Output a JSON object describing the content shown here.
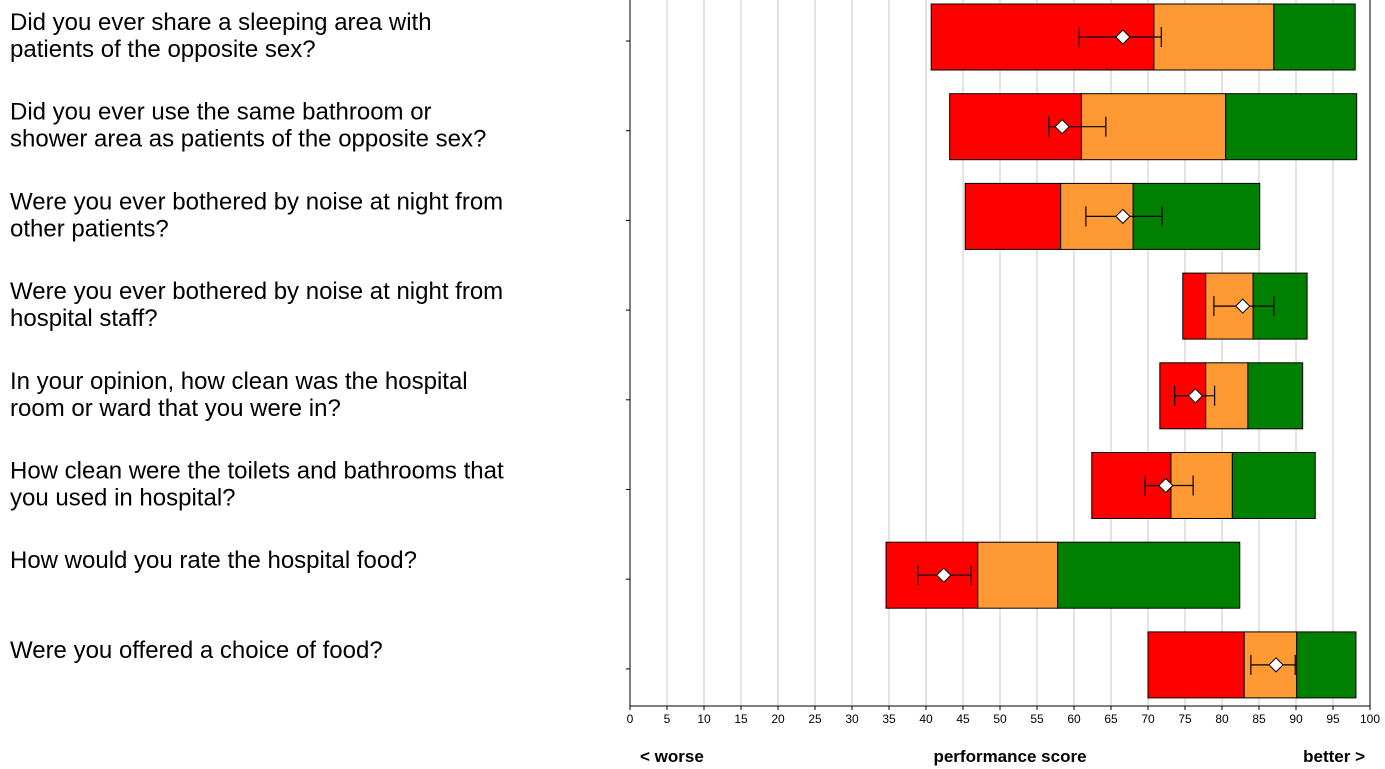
{
  "chart_data": {
    "type": "range_bar",
    "categories": [
      [
        "Did you ever share a sleeping area with",
        "patients of the opposite sex?"
      ],
      [
        "Did you ever use the same bathroom or",
        "shower area as patients of the opposite sex?"
      ],
      [
        "Were you ever bothered by noise at night from",
        "other patients?"
      ],
      [
        "Were you ever bothered by noise at night from",
        "hospital staff?"
      ],
      [
        "In your opinion, how clean was the hospital",
        "room or ward that you were in?"
      ],
      [
        "How clean were the toilets and bathrooms that",
        "you used in hospital?"
      ],
      [
        "How would you rate the hospital food?"
      ],
      [
        "Were you offered a choice of food?"
      ]
    ],
    "ranges": [
      [
        40.7,
        70.8,
        87.0,
        98.0
      ],
      [
        43.2,
        61.0,
        80.5,
        98.2
      ],
      [
        45.3,
        58.2,
        68.0,
        85.1
      ],
      [
        74.7,
        77.8,
        84.2,
        91.5
      ],
      [
        71.6,
        77.8,
        83.5,
        90.9
      ],
      [
        62.4,
        73.1,
        81.4,
        92.6
      ],
      [
        34.6,
        47.0,
        57.8,
        82.4
      ],
      [
        70.0,
        83.0,
        90.1,
        98.1
      ]
    ],
    "colors": [
      "#ff0000",
      "#ff9933",
      "#008000"
    ],
    "scores": [
      66.6,
      58.4,
      66.6,
      82.8,
      76.4,
      72.4,
      42.4,
      87.3
    ],
    "errors": [
      [
        60.7,
        71.8
      ],
      [
        56.6,
        64.3
      ],
      [
        61.6,
        71.9
      ],
      [
        78.9,
        87.0
      ],
      [
        73.6,
        79.0
      ],
      [
        69.6,
        76.1
      ],
      [
        38.9,
        46.1
      ],
      [
        83.9,
        89.9
      ]
    ],
    "xlim": [
      0,
      100
    ],
    "xticks": [
      0,
      5,
      10,
      15,
      20,
      25,
      30,
      35,
      40,
      45,
      50,
      55,
      60,
      65,
      70,
      75,
      80,
      85,
      90,
      95,
      100
    ],
    "grid": true,
    "x_label_left": "< worse",
    "x_label": "performance score",
    "x_label_right": "better >"
  }
}
